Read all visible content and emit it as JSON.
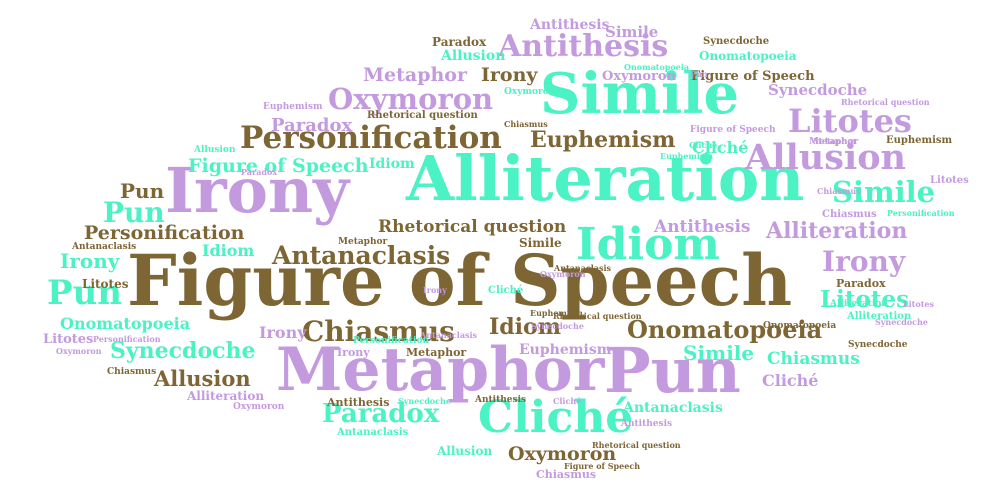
{
  "colors": {
    "green": "#4bf2c4",
    "lavender": "#c49adf",
    "olive": "#7d6534",
    "background": "#ffffff"
  },
  "words": [
    "Figure of Speech",
    "Alliteration",
    "Metaphor",
    "Pun",
    "Irony",
    "Simile",
    "Idiom",
    "Cliché",
    "Personification",
    "Antithesis",
    "Oxymoron",
    "Allusion",
    "Litotes",
    "Onomatopoeia",
    "Chiasmus",
    "Antanaclasis",
    "Euphemism",
    "Paradox",
    "Synecdoche",
    "Rhetorical question",
    "Figure of Speech",
    "Simile",
    "Pun",
    "Pun",
    "Irony",
    "Litotes",
    "Idiom",
    "Personification",
    "Alliteration",
    "Idiom",
    "Antithesis",
    "Rhetorical question",
    "Antanaclasis",
    "Irony",
    "Pun",
    "Litotes",
    "Simile",
    "Chiasmus",
    "Onomatopoeia",
    "Synecdoche",
    "Allusion",
    "Paradox",
    "Oxymoron",
    "Antithesis",
    "Simile",
    "Synecdoche",
    "Metaphor",
    "Irony",
    "Paradox",
    "Allusion",
    "Oxymoron",
    "Onomatopoeia",
    "Euphemism",
    "Figure of Speech",
    "Cliché",
    "Figure of Speech",
    "Idiom",
    "Euphemism",
    "Rhetorical question",
    "Metaphor",
    "Litotes",
    "Chiasmus",
    "Personification",
    "Rhetorical question",
    "Paradox",
    "Alliteration",
    "Irony",
    "Metaphor",
    "Euphemism",
    "Cliché",
    "Chiasmus",
    "Antanaclasis",
    "Alliteration",
    "Onomatopoeia",
    "Synecdoche",
    "Cliché",
    "Litotes",
    "Personification",
    "Oxymoron",
    "Chiasmus",
    "Alliteration",
    "Oxymoron",
    "Antithesis",
    "Synecdoche",
    "Personification",
    "Allusion",
    "Irony",
    "Cliché",
    "Antanaclasis",
    "Metaphor",
    "Oxymoron",
    "Rhetorical question",
    "Figure of Speech",
    "Chiasmus",
    "Allusion",
    "Antithesis",
    "Antanaclasis",
    "Simile",
    "Antithesis",
    "Metaphor",
    "Synecdoche",
    "Paradox",
    "Onomatopoeia",
    "Euphemism",
    "Irony",
    "Litotes",
    "Antanaclasis",
    "Euphemism",
    "Synecdoche",
    "Oxymoron",
    "Pun",
    "Cliché",
    "Chiasmus"
  ]
}
